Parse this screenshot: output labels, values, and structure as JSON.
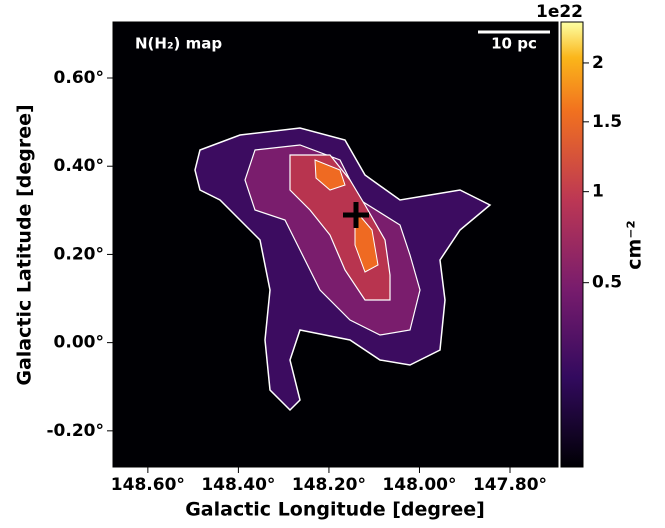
{
  "chart_data": {
    "type": "image",
    "title": "N(H₂) map",
    "scale_bar_label": "10 pc",
    "x_label": "Galactic Longitude [degree]",
    "y_label": "Galactic Latitude [degree]",
    "xlim": [
      148.677,
      147.694
    ],
    "ylim": [
      -0.282,
      0.727
    ],
    "xticks": [
      {
        "value": 148.6,
        "label": "148.60°"
      },
      {
        "value": 148.4,
        "label": "148.40°"
      },
      {
        "value": 148.2,
        "label": "148.20°"
      },
      {
        "value": 148.0,
        "label": "148.00°"
      },
      {
        "value": 147.8,
        "label": "147.80°"
      }
    ],
    "yticks": [
      {
        "value": 0.6,
        "label": "0.60°"
      },
      {
        "value": 0.4,
        "label": "0.40°"
      },
      {
        "value": 0.2,
        "label": "0.20°"
      },
      {
        "value": 0.0,
        "label": "0.00°"
      },
      {
        "value": -0.2,
        "label": "-0.20°"
      }
    ],
    "colorbar": {
      "label": "cm⁻²",
      "offset": "1e22",
      "scale": "sqrt",
      "clim": [
        0.013,
        2.39
      ],
      "colormap": "inferno",
      "ticks": [
        2.0,
        1.5,
        1.0,
        0.5
      ]
    }
  }
}
